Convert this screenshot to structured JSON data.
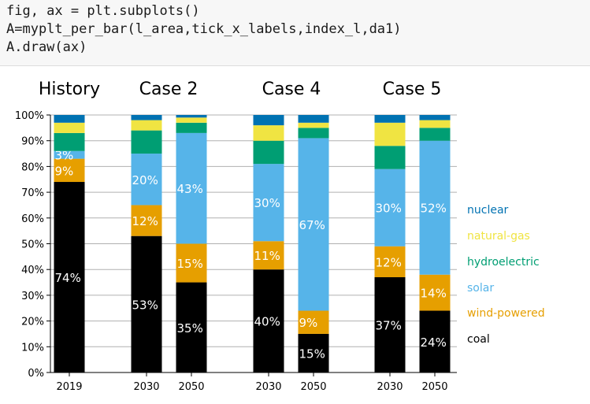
{
  "code_cell": {
    "lines": [
      "fig, ax = plt.subplots()",
      "A=myplt_per_bar(l_area,tick_x_labels,index_l,da1)",
      "A.draw(ax)"
    ]
  },
  "chart_data": {
    "type": "bar",
    "stacked": true,
    "group_titles": [
      "History",
      "Case 2",
      "Case 4",
      "Case 5"
    ],
    "categories": [
      "2019",
      "2030",
      "2050",
      "2030",
      "2050",
      "2030",
      "2050"
    ],
    "ylim": [
      0,
      100
    ],
    "yticks": [
      "0%",
      "10%",
      "20%",
      "30%",
      "40%",
      "50%",
      "60%",
      "70%",
      "80%",
      "90%",
      "100%"
    ],
    "grid": true,
    "legend_position": "right",
    "series": [
      {
        "name": "coal",
        "color": "#000000",
        "values": [
          74,
          53,
          35,
          40,
          15,
          37,
          24
        ]
      },
      {
        "name": "wind-powered",
        "color": "#E69F00",
        "values": [
          9,
          12,
          15,
          11,
          9,
          12,
          14
        ]
      },
      {
        "name": "solar",
        "color": "#56B4E9",
        "values": [
          3,
          20,
          43,
          30,
          67,
          30,
          52
        ]
      },
      {
        "name": "hydroelectric",
        "color": "#009E73",
        "values": [
          7,
          9,
          4,
          9,
          4,
          9,
          5
        ]
      },
      {
        "name": "natural-gas",
        "color": "#F0E442",
        "values": [
          4,
          4,
          2,
          6,
          2,
          9,
          3
        ]
      },
      {
        "name": "nuclear",
        "color": "#0072B2",
        "values": [
          3,
          2,
          1,
          4,
          3,
          3,
          2
        ]
      }
    ],
    "data_labels": [
      [
        "74%",
        "53%",
        "35%",
        "40%",
        "15%",
        "37%",
        "24%"
      ],
      [
        "9%",
        "12%",
        "15%",
        "11%",
        "9%",
        "12%",
        "14%"
      ],
      [
        "3%",
        "20%",
        "43%",
        "30%",
        "67%",
        "30%",
        "52%"
      ],
      null,
      null,
      null
    ]
  }
}
